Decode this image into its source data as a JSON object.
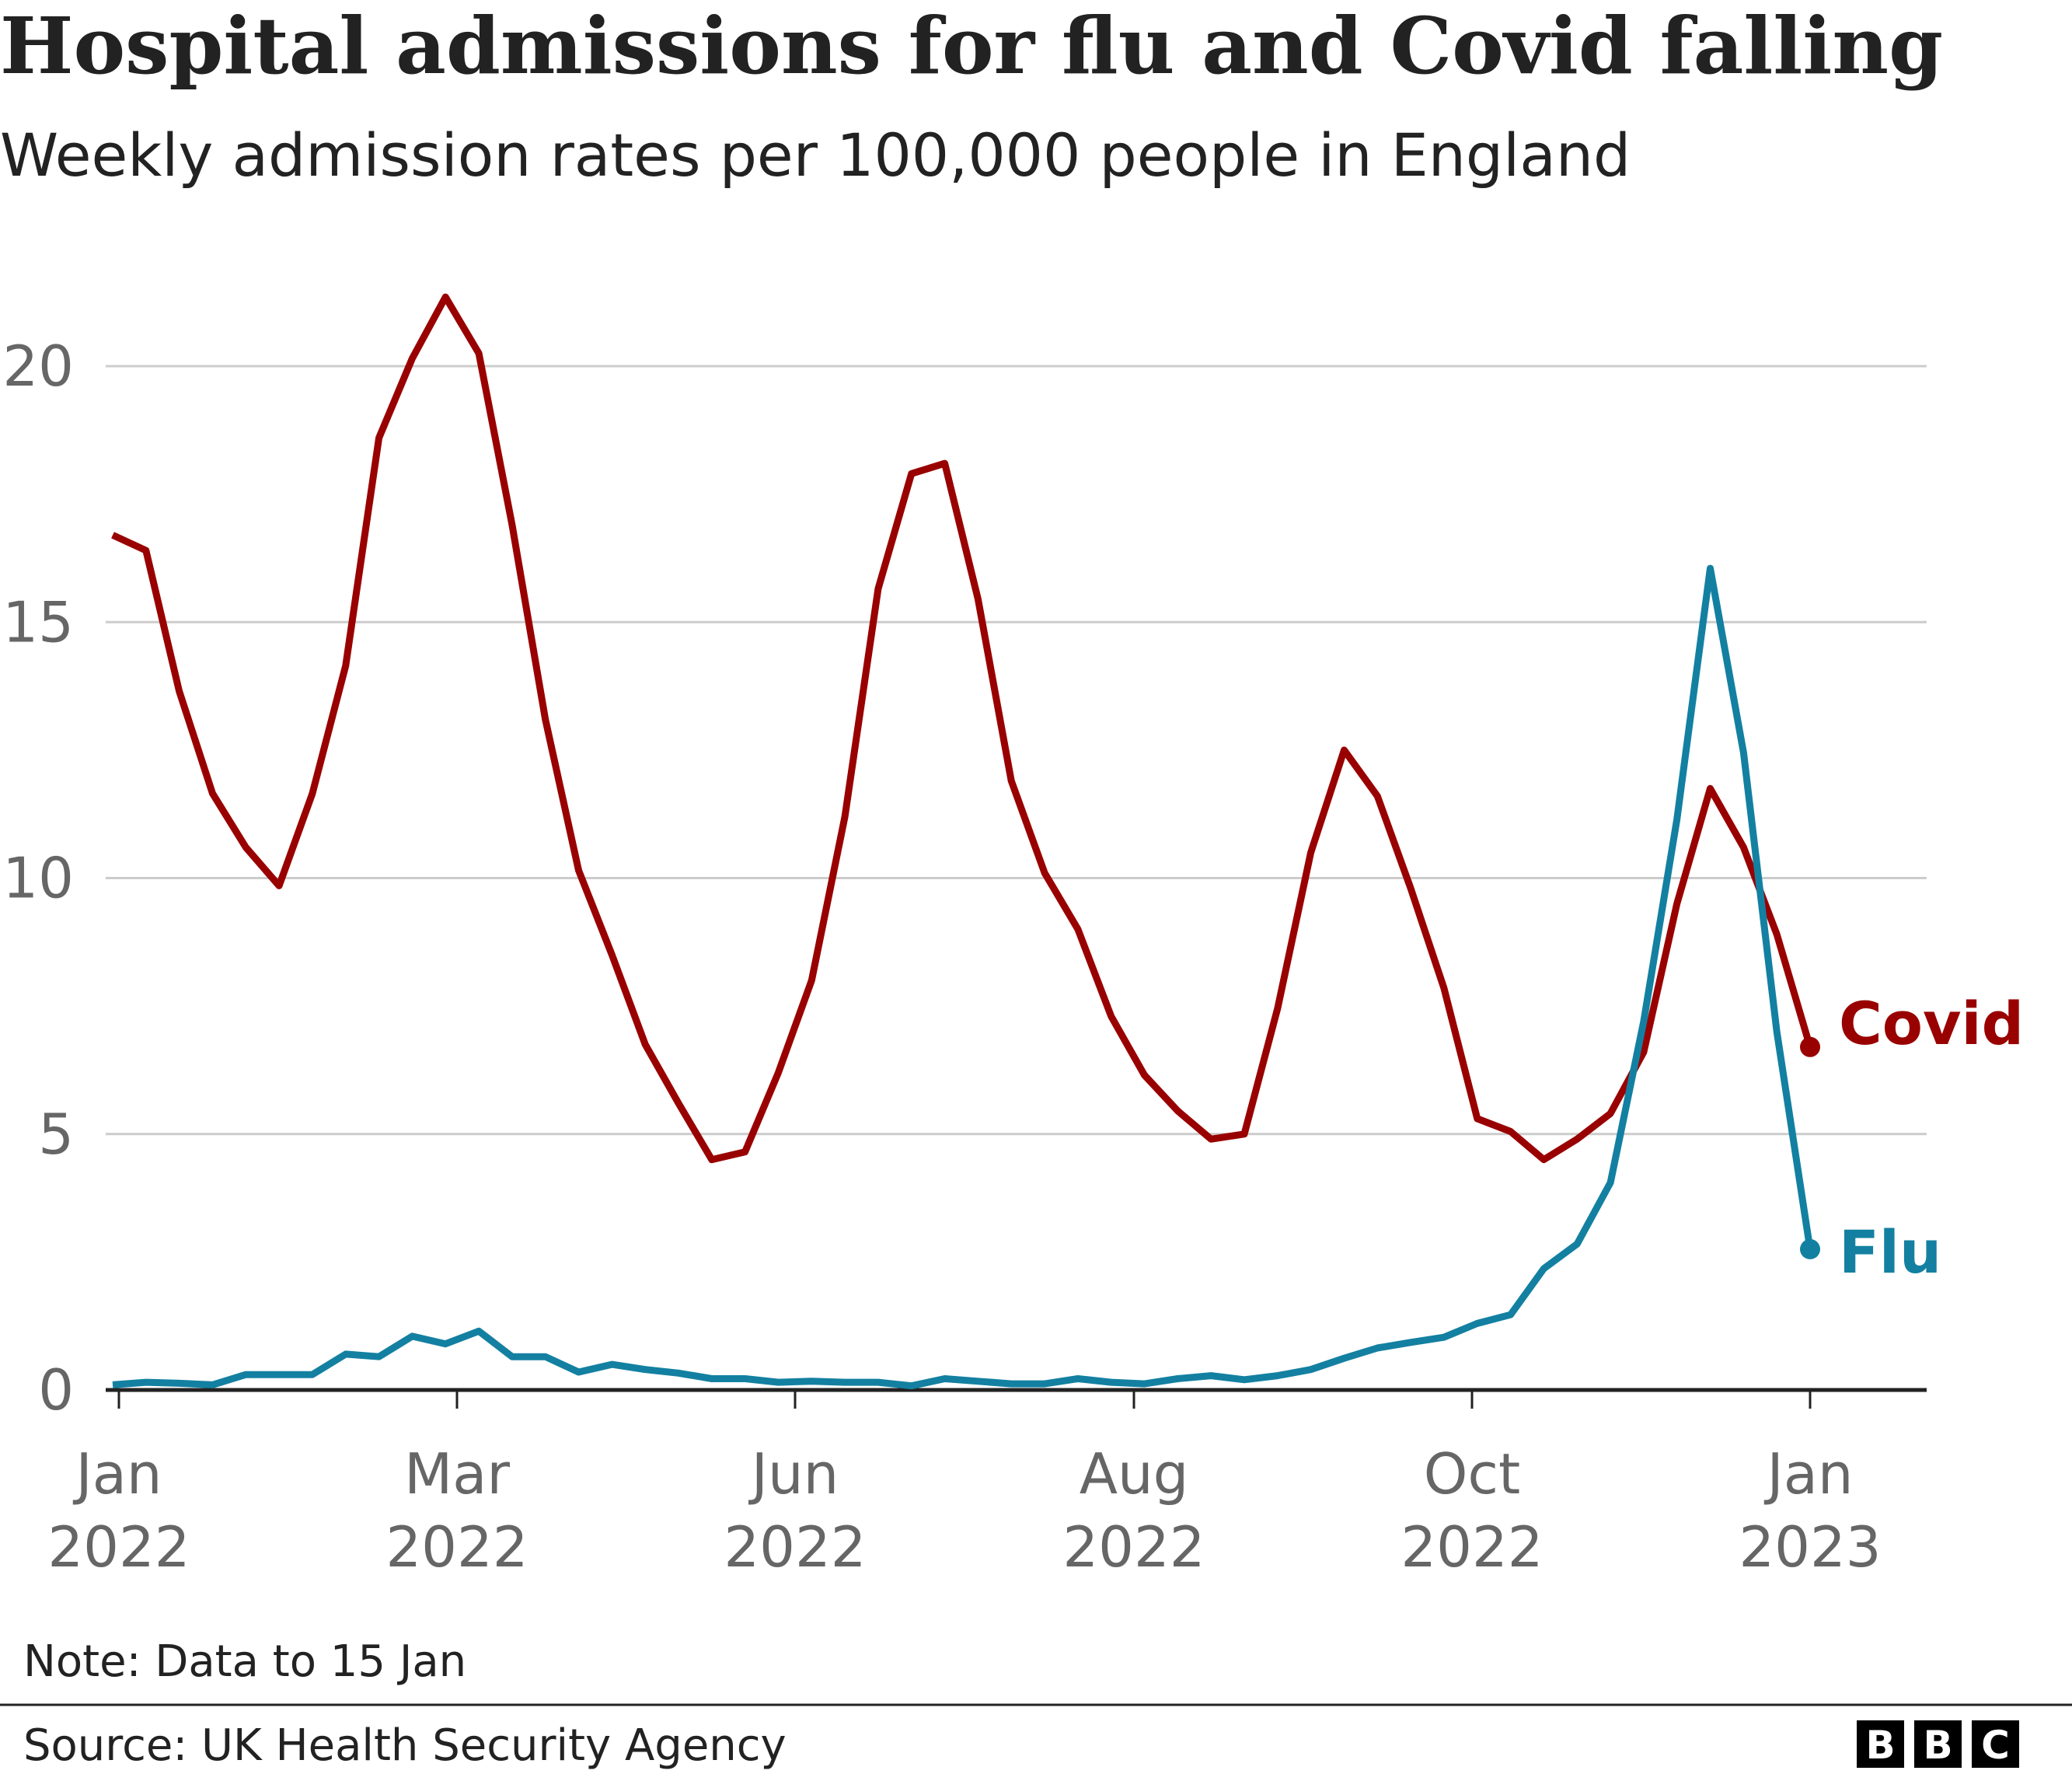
{
  "title": "Hospital admissions for flu and Covid falling",
  "subtitle": "Weekly admission rates per 100,000 people in England",
  "note": "Note: Data to 15 Jan",
  "source": "Source: UK Health Security Agency",
  "logo": [
    "B",
    "B",
    "C"
  ],
  "chart_data": {
    "type": "line",
    "title": "Hospital admissions for flu and Covid falling",
    "subtitle": "Weekly admission rates per 100,000 people in England",
    "x_interval": "weekly",
    "x_ticks": [
      {
        "month": "Jan",
        "year": "2022"
      },
      {
        "month": "Mar",
        "year": "2022"
      },
      {
        "month": "Jun",
        "year": "2022"
      },
      {
        "month": "Aug",
        "year": "2022"
      },
      {
        "month": "Oct",
        "year": "2022"
      },
      {
        "month": "Jan",
        "year": "2023"
      }
    ],
    "y_ticks": [
      "0",
      "5",
      "10",
      "15",
      "20"
    ],
    "ylim": [
      0,
      22
    ],
    "grid": true,
    "legend": "direct labels at line ends",
    "series": [
      {
        "name": "Covid",
        "color": "#990000",
        "values": [
          16.7,
          16.4,
          13.65,
          11.65,
          10.6,
          9.85,
          11.65,
          14.15,
          18.6,
          20.15,
          21.35,
          20.25,
          16.9,
          13.1,
          10.15,
          8.5,
          6.75,
          5.6,
          4.5,
          4.65,
          6.2,
          8.0,
          11.2,
          15.65,
          17.9,
          18.1,
          15.45,
          11.9,
          10.1,
          9.0,
          7.3,
          6.15,
          5.45,
          4.9,
          5.0,
          7.45,
          10.5,
          12.5,
          11.6,
          9.8,
          7.85,
          5.3,
          5.05,
          4.5,
          4.9,
          5.4,
          6.6,
          9.5,
          11.75,
          10.6,
          8.9,
          6.7
        ]
      },
      {
        "name": "Flu",
        "color": "#1380A1",
        "values": [
          0.1,
          0.15,
          0.13,
          0.1,
          0.3,
          0.3,
          0.3,
          0.7,
          0.65,
          1.05,
          0.9,
          1.15,
          0.65,
          0.65,
          0.35,
          0.5,
          0.4,
          0.33,
          0.22,
          0.22,
          0.15,
          0.17,
          0.15,
          0.15,
          0.08,
          0.22,
          0.17,
          0.12,
          0.12,
          0.22,
          0.15,
          0.12,
          0.22,
          0.28,
          0.2,
          0.28,
          0.4,
          0.62,
          0.82,
          0.93,
          1.03,
          1.3,
          1.47,
          2.37,
          2.85,
          4.05,
          7.2,
          11.15,
          16.05,
          12.45,
          7.0,
          2.75
        ]
      }
    ]
  }
}
